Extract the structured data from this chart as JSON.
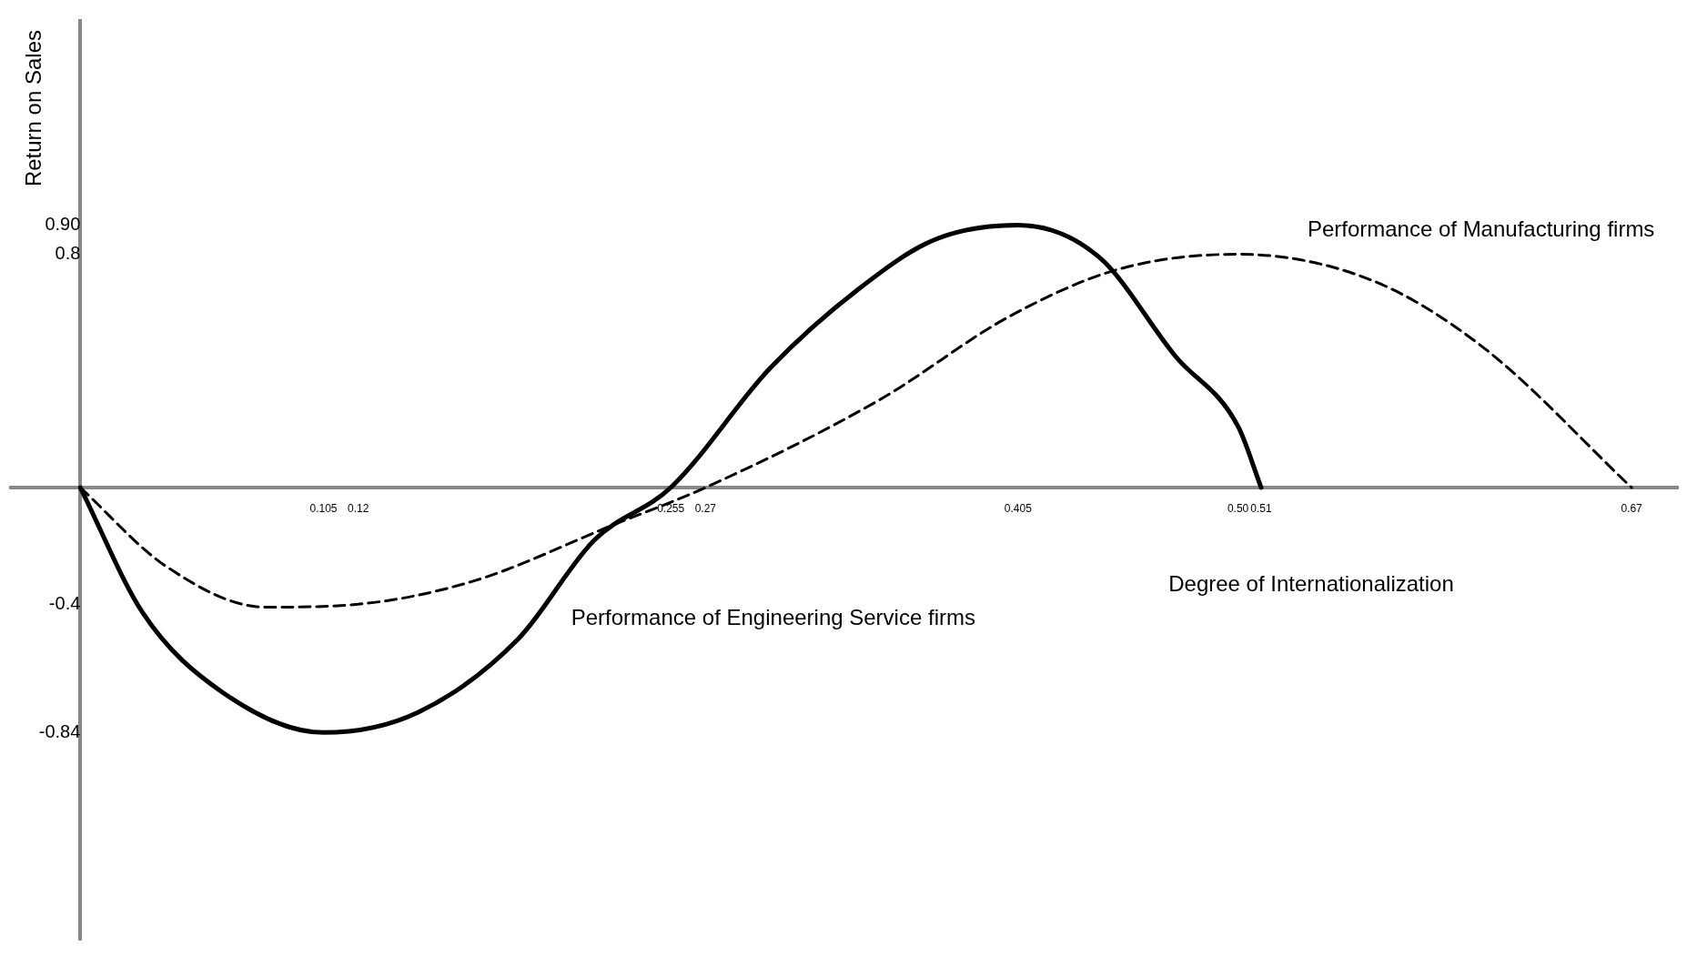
{
  "chart_data": {
    "type": "line",
    "xlabel": "Degree of Internationalization",
    "ylabel": "Return on Sales",
    "xlim": [
      -0.03,
      0.69
    ],
    "ylim": [
      -1.55,
      1.6
    ],
    "xticks": [
      0.105,
      0.12,
      0.255,
      0.27,
      0.405,
      {
        "value": 0.5,
        "label": "0.50"
      },
      0.51,
      0.67
    ],
    "yticks": [
      -0.84,
      -0.4,
      0.8,
      {
        "value": 0.9,
        "label": "0.90"
      }
    ],
    "grid": false,
    "legend": false,
    "marker": "none",
    "series": [
      {
        "name": "Performance of Engineering Service firms",
        "color": "#000000",
        "line_style": "solid",
        "x": [
          0,
          0.027,
          0.061,
          0.105,
          0.146,
          0.189,
          0.222,
          0.255,
          0.298,
          0.336,
          0.369,
          0.405,
          0.44,
          0.473,
          0.5,
          0.51
        ],
        "values": [
          0,
          -0.43,
          -0.7,
          -0.84,
          -0.77,
          -0.52,
          -0.18,
          0,
          0.41,
          0.68,
          0.85,
          0.9,
          0.79,
          0.45,
          0.21,
          0
        ]
      },
      {
        "name": "Performance of Manufacturing firms",
        "color": "#000000",
        "line_style": "dashed",
        "x": [
          0,
          0.037,
          0.08,
          0.12,
          0.17,
          0.231,
          0.27,
          0.345,
          0.402,
          0.449,
          0.5,
          0.558,
          0.606,
          0.67
        ],
        "values": [
          0,
          -0.27,
          -0.41,
          -0.4,
          -0.32,
          -0.125,
          0,
          0.3,
          0.59,
          0.75,
          0.8,
          0.71,
          0.48,
          0
        ]
      }
    ]
  }
}
